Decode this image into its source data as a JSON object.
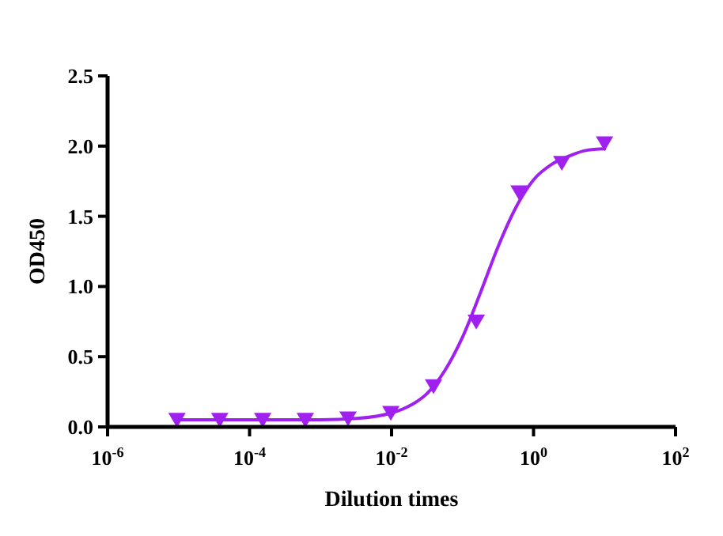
{
  "chart_data": {
    "type": "scatter",
    "xlabel": "Dilution times",
    "ylabel": "OD450",
    "log": "x",
    "grid": false,
    "xlim": [
      1e-06,
      100
    ],
    "ylim": [
      0,
      2.5
    ],
    "xticks": [
      {
        "value": 1e-06,
        "label": "10$^{-6}$"
      },
      {
        "value": 0.0001,
        "label": "10$^{-4}$"
      },
      {
        "value": 0.01,
        "label": "10$^{-2}$"
      },
      {
        "value": 1,
        "label": "10$^{0}$"
      },
      {
        "value": 100,
        "label": "10$^{2}$"
      }
    ],
    "yticks": [
      {
        "value": 0,
        "label": "0.0"
      },
      {
        "value": 0.5,
        "label": "0.5"
      },
      {
        "value": 1,
        "label": "1.0"
      },
      {
        "value": 1.5,
        "label": "1.5"
      },
      {
        "value": 2,
        "label": "2.0"
      },
      {
        "value": 2.5,
        "label": "2.5"
      }
    ],
    "series": [
      {
        "color": "#a020f0",
        "marker": "triangle",
        "x": [
          9.5e-06,
          3.8e-05,
          0.000153,
          0.00061,
          0.00244,
          0.00977,
          0.039,
          0.156,
          0.625,
          2.5,
          10
        ],
        "values": [
          0.05,
          0.05,
          0.05,
          0.05,
          0.06,
          0.1,
          0.29,
          0.75,
          1.67,
          1.88,
          2.02
        ]
      },
      {
        "type": "line",
        "color": "#a020f0",
        "marker": "none",
        "line_style": "solid",
        "x": [
          1e-05,
          0.0001,
          0.001,
          0.0032,
          0.01,
          0.018,
          0.032,
          0.056,
          0.1,
          0.18,
          0.32,
          0.56,
          1,
          1.8,
          3.2,
          5.6,
          10
        ],
        "values": [
          0.05,
          0.05,
          0.05,
          0.06,
          0.1,
          0.15,
          0.24,
          0.4,
          0.64,
          0.96,
          1.29,
          1.56,
          1.76,
          1.87,
          1.93,
          1.97,
          1.98
        ]
      }
    ]
  }
}
